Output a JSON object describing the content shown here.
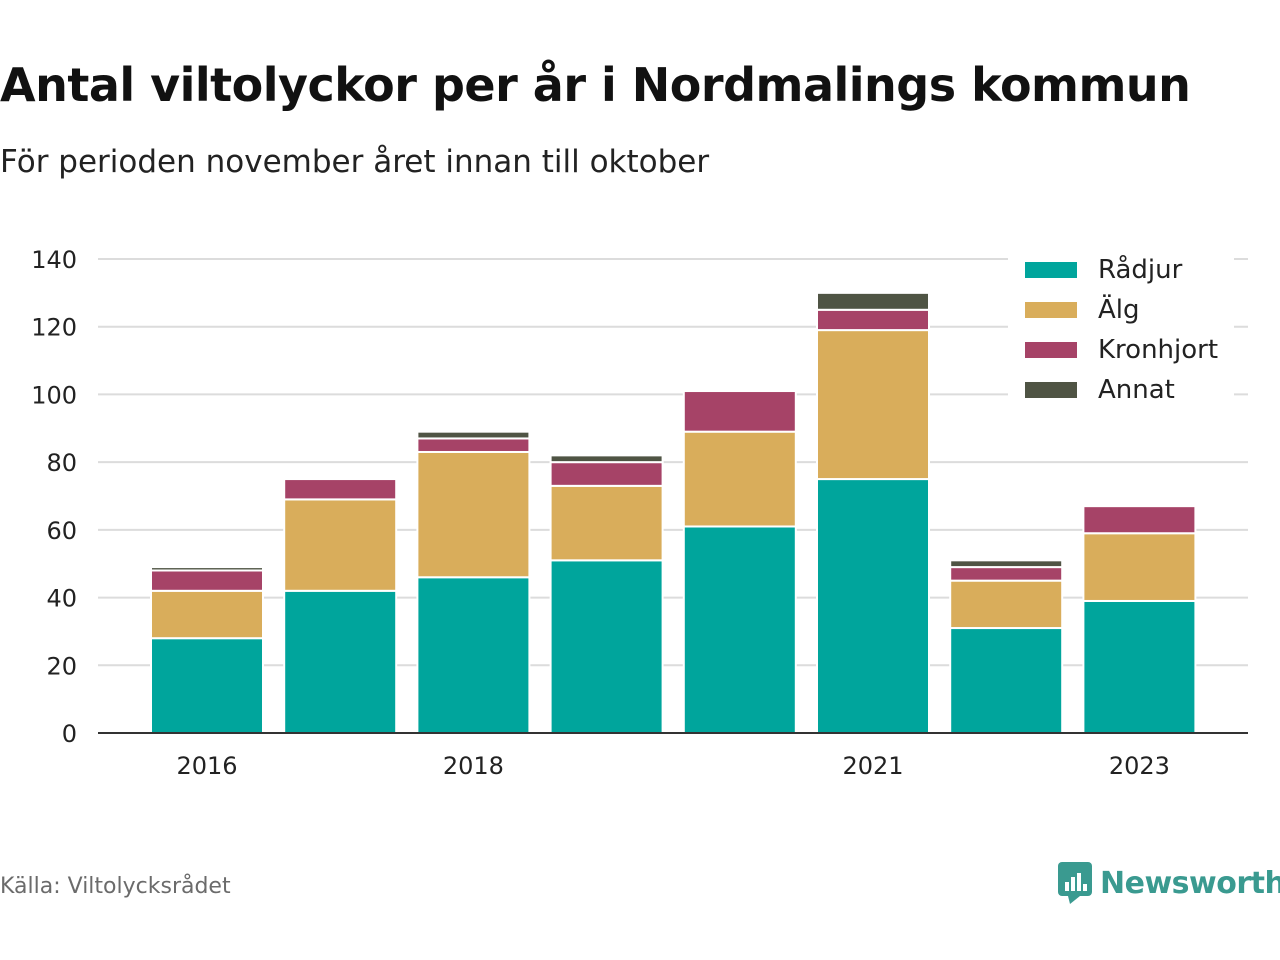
{
  "title": "Antal viltolyckor per år i Nordmalings kommun",
  "subtitle": "För perioden november året innan till oktober",
  "source": "Källa: Viltolycksrådet",
  "brand": {
    "name": "Newsworthy",
    "icon": "newsworthy-logo-icon",
    "color": "#3a9a90"
  },
  "chart_data": {
    "type": "bar",
    "stacked": true,
    "categories": [
      "2016",
      "2017",
      "2018",
      "2019",
      "2020",
      "2021",
      "2022",
      "2023"
    ],
    "x_tick_labels": [
      "2016",
      "",
      "2018",
      "",
      "",
      "2021",
      "",
      "2023"
    ],
    "series": [
      {
        "name": "Rådjur",
        "color": "#00a59c",
        "values": [
          28,
          42,
          46,
          51,
          61,
          75,
          31,
          39
        ]
      },
      {
        "name": "Älg",
        "color": "#d9ad5b",
        "values": [
          14,
          27,
          37,
          22,
          28,
          44,
          14,
          20
        ]
      },
      {
        "name": "Kronhjort",
        "color": "#a64367",
        "values": [
          6,
          6,
          4,
          7,
          12,
          6,
          4,
          8
        ]
      },
      {
        "name": "Annat",
        "color": "#4f5444",
        "values": [
          1,
          0,
          2,
          2,
          0,
          5,
          2,
          0
        ]
      }
    ],
    "ylim": [
      0,
      140
    ],
    "yticks": [
      0,
      20,
      40,
      60,
      80,
      100,
      120,
      140
    ],
    "grid": true,
    "legend": "top-right"
  }
}
